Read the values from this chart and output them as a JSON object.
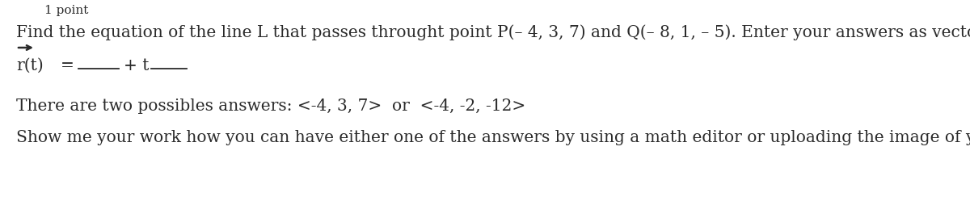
{
  "background_color": "#ffffff",
  "top_label": "1 point",
  "line1": "Find the equation of the line L that passes throught point P(– 4, 3, 7) and Q(– 8, 1, – 5). Enter your answers as vectors.",
  "line3_prefix": "There are two possibles answers: <-4, 3, 7>  or  <-4, -2, -12>",
  "line4": "Show me your work how you can have either one of the answers by using a math editor or uploading the image of your work.",
  "rt_text": "r(t)",
  "equals_text": "=",
  "plus_t_text": "+ t",
  "font_size_main": 14.5,
  "font_size_top": 11,
  "font_size_rt": 14.5,
  "text_color": "#2a2a2a",
  "arrow_color": "#2a2a2a",
  "underline_color": "#2a2a2a"
}
